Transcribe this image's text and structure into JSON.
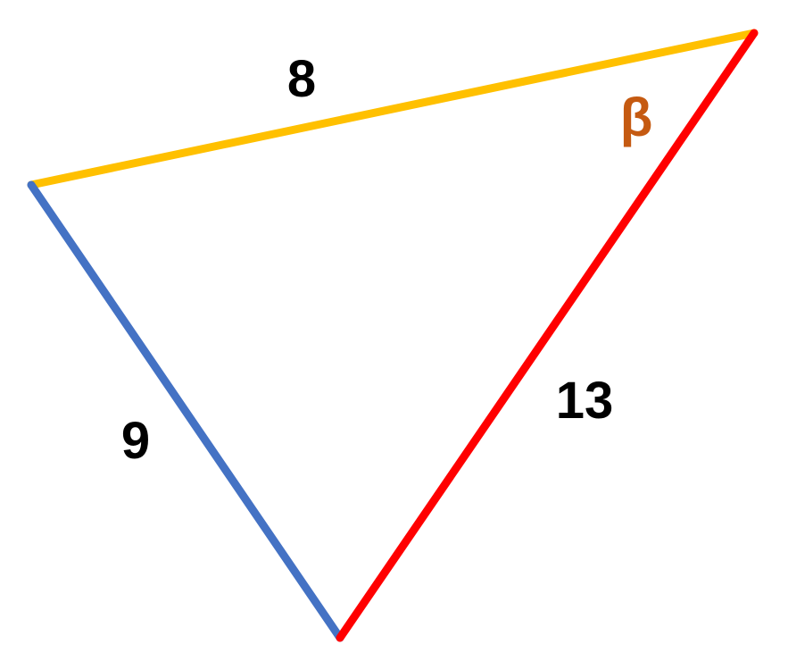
{
  "diagram": {
    "sides": {
      "top": {
        "label": "8",
        "color": "#FFC000"
      },
      "left": {
        "label": "9",
        "color": "#4472C4"
      },
      "right": {
        "label": "13",
        "color": "#FF0000"
      }
    },
    "angle": {
      "label": "β",
      "color": "#C55A11"
    }
  }
}
